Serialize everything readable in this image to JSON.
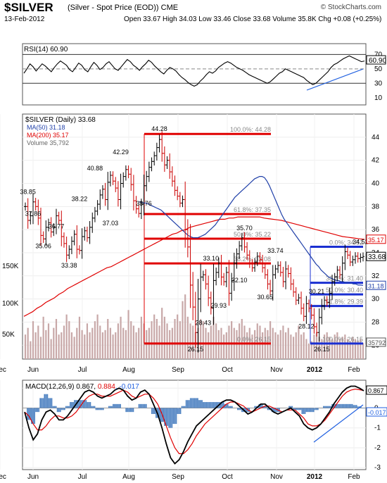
{
  "header": {
    "ticker": "$SILVER",
    "description": "(Silver - Spot Price (EOD))",
    "exchange": "CME",
    "date": "13-Feb-2012",
    "ohlc": "Open 33.67  High 34.03  Low 33.46  Close 33.68  Volume 35.8K  Chg +0.08 (+0.25%)",
    "ohlc_change_color": "#0000cc",
    "logo": "© StockCharts.com"
  },
  "colors": {
    "price_up": "#000000",
    "price_down": "#cc0000",
    "ma50": "#1f3fa8",
    "ma200": "#e00000",
    "fib_down": "#e00000",
    "fib_up": "#1a2fd1",
    "volume": "#c8a8a8",
    "trend": "#2060e0",
    "macd_hist": "#4a7fc0"
  },
  "chart_data": [
    {
      "type": "line",
      "panel": "rsi",
      "legend": "RSI(14) 60.90",
      "yticks": [
        10,
        30,
        50,
        70
      ],
      "guides": [
        30,
        70
      ],
      "last_value": "60.90",
      "ylim": [
        0,
        85
      ],
      "series": [
        {
          "name": "RSI(14)",
          "values": [
            44,
            50,
            57,
            53,
            47,
            52,
            57,
            54,
            50,
            46,
            52,
            57,
            61,
            58,
            55,
            49,
            46,
            52,
            58,
            55,
            49,
            46,
            53,
            59,
            55,
            49,
            52,
            57,
            60,
            55,
            50,
            48,
            53,
            58,
            63,
            60,
            55,
            52,
            48,
            53,
            57,
            62,
            59,
            54,
            50,
            46,
            43,
            48,
            52,
            50,
            47,
            42,
            38,
            35,
            31,
            28,
            26,
            28,
            33,
            37,
            42,
            46,
            44,
            47,
            52,
            55,
            58,
            60,
            58,
            55,
            52,
            50,
            48,
            45,
            42,
            40,
            38,
            36,
            34,
            32,
            30,
            32,
            36,
            40,
            44,
            46,
            50,
            48,
            46,
            44,
            42,
            40,
            38,
            34,
            31,
            28,
            30,
            34,
            38,
            42,
            46,
            52,
            56,
            58,
            61,
            64,
            66,
            68,
            66,
            64,
            62,
            60,
            61
          ]
        }
      ]
    },
    {
      "type": "candlestick",
      "panel": "price",
      "legend": "$SILVER (Daily) 33.68",
      "ylim": [
        24.8,
        46
      ],
      "yticks": [
        26,
        28,
        30,
        32,
        34,
        36,
        38,
        40,
        42,
        44
      ],
      "volume_ticks": [
        "50K",
        "100K",
        "150K"
      ],
      "xlabels": [
        "Jun",
        "Jul",
        "Aug",
        "Sep",
        "Oct",
        "Nov",
        "Dec",
        "2012",
        "Feb"
      ],
      "close": [
        38.0,
        36.8,
        37.2,
        38.4,
        38.0,
        37.0,
        35.5,
        35.2,
        36.2,
        36.6,
        35.8,
        36.2,
        37.2,
        36.8,
        35.4,
        34.8,
        33.8,
        34.3,
        35.0,
        35.6,
        34.3,
        34.2,
        35.4,
        35.9,
        35.3,
        36.2,
        37.0,
        37.6,
        38.2,
        39.0,
        39.5,
        38.6,
        40.1,
        40.7,
        40.2,
        39.6,
        38.6,
        40.0,
        40.6,
        41.2,
        40.8,
        39.9,
        38.5,
        37.8,
        37.4,
        38.2,
        39.8,
        40.6,
        41.4,
        41.9,
        42.4,
        43.1,
        43.8,
        42.6,
        41.6,
        42.0,
        41.0,
        40.2,
        39.4,
        38.9,
        38.3,
        38.6,
        36.0,
        34.5,
        31.2,
        29.3,
        27.1,
        30.0,
        31.9,
        32.1,
        31.3,
        30.1,
        29.2,
        31.6,
        32.3,
        33.1,
        31.9,
        31.5,
        32.3,
        30.5,
        31.6,
        33.1,
        33.9,
        34.6,
        35.3,
        34.5,
        33.8,
        33.1,
        32.7,
        33.2,
        33.7,
        33.4,
        32.7,
        32.1,
        31.3,
        30.7,
        32.1,
        32.6,
        32.9,
        32.3,
        31.5,
        32.6,
        32.2,
        31.3,
        30.6,
        29.9,
        30.1,
        29.2,
        28.5,
        29.6,
        29.2,
        28.6,
        27.6,
        27.1,
        28.4,
        29.4,
        29.9,
        29.7,
        30.5,
        31.5,
        31.9,
        32.5,
        32.1,
        33.1,
        34.1,
        33.8,
        33.2,
        33.4,
        33.7,
        33.5,
        33.6,
        33.68
      ],
      "ma50": [
        38.4,
        38.4,
        38.3,
        38.3,
        38.2,
        38.1,
        38.0,
        37.9,
        37.8,
        37.7,
        37.5,
        37.3,
        37.1,
        36.9,
        36.7,
        36.5,
        36.3,
        36.1,
        35.9,
        35.7,
        35.5,
        35.4,
        35.3,
        35.3,
        35.3,
        35.4,
        35.5,
        35.6,
        35.8,
        36.0,
        36.2,
        36.4,
        36.7,
        37.0,
        37.3,
        37.6,
        37.9,
        38.2,
        38.5,
        38.8,
        39.0,
        39.2,
        39.4,
        39.6,
        39.8,
        40.0,
        40.2,
        40.4,
        40.5,
        40.6,
        40.6,
        40.5,
        40.2,
        39.8,
        39.3,
        38.8,
        38.3,
        37.8,
        37.3,
        36.9,
        36.6,
        36.3,
        36.0,
        35.7,
        35.4,
        35.1,
        34.8,
        34.5,
        34.2,
        33.9,
        33.6,
        33.3,
        33.0,
        32.8,
        32.5,
        32.3,
        32.1,
        31.9,
        31.8,
        31.7,
        31.6,
        31.6,
        31.5,
        31.5,
        31.4,
        31.4,
        31.4,
        31.3,
        31.3,
        31.2,
        31.2,
        31.18
      ],
      "ma50_offset": 44,
      "ma200": [
        28.5,
        28.7,
        28.9,
        29.2,
        29.4,
        29.7,
        29.9,
        30.1,
        30.4,
        30.6,
        30.9,
        31.1,
        31.3,
        31.5,
        31.7,
        31.9,
        32.1,
        32.3,
        32.5,
        32.7,
        32.8,
        33.0,
        33.2,
        33.4,
        33.6,
        33.8,
        34.0,
        34.2,
        34.4,
        34.6,
        34.8,
        35.0,
        35.2,
        35.4,
        35.6,
        35.7,
        35.9,
        36.0,
        36.2,
        36.3,
        36.4,
        36.5,
        36.6,
        36.7,
        36.8,
        36.9,
        36.9,
        37.0,
        37.0,
        37.1,
        37.1,
        37.1,
        37.1,
        37.1,
        37.1,
        37.0,
        36.95,
        36.9,
        36.85,
        36.8,
        36.7,
        36.6,
        36.5,
        36.4,
        36.3,
        36.2,
        36.1,
        36.0,
        35.9,
        35.8,
        35.7,
        35.6,
        35.5,
        35.4,
        35.35,
        35.3,
        35.25,
        35.2,
        35.17
      ],
      "volume": [
        55,
        70,
        40,
        85,
        60,
        75,
        50,
        95,
        65,
        80,
        45,
        70,
        90,
        55,
        60,
        75,
        100,
        85,
        60,
        50,
        70,
        95,
        65,
        55,
        80,
        60,
        70,
        85,
        100,
        75,
        60,
        65,
        90,
        70,
        55,
        60,
        80,
        95,
        70,
        65,
        110,
        85,
        75,
        60,
        70,
        95,
        80,
        65,
        70,
        85,
        100,
        90,
        75,
        115,
        95,
        80,
        65,
        70,
        90,
        100,
        85,
        130,
        145,
        95,
        80,
        75,
        60,
        70,
        90,
        85,
        70,
        60,
        75,
        95,
        80,
        65,
        70,
        55,
        60,
        75,
        85,
        70,
        65,
        80,
        90,
        75,
        60,
        70,
        55,
        65,
        80,
        75,
        60,
        70,
        65,
        85,
        70,
        60,
        55,
        65,
        75,
        60,
        70,
        55,
        50,
        60,
        75,
        55,
        60,
        45,
        35,
        40,
        55,
        60,
        50,
        45,
        55,
        60,
        50,
        45,
        55,
        60,
        45,
        50,
        55,
        45,
        40,
        50,
        45,
        40,
        45,
        36
      ],
      "point_labels": [
        {
          "i": 1,
          "value": "38.85"
        },
        {
          "i": 3,
          "value": "37.86"
        },
        {
          "i": 7,
          "value": "35.06"
        },
        {
          "i": 12,
          "value": "36.77"
        },
        {
          "i": 17,
          "value": "33.38"
        },
        {
          "i": 21,
          "value": "38.22"
        },
        {
          "i": 27,
          "value": "40.88"
        },
        {
          "i": 33,
          "value": "37.03"
        },
        {
          "i": 37,
          "value": "42.29"
        },
        {
          "i": 46,
          "value": "38.76"
        },
        {
          "i": 52,
          "value": "44.28"
        },
        {
          "i": 66,
          "value": "26.15"
        },
        {
          "i": 69,
          "value": "28.43"
        },
        {
          "i": 72,
          "value": "33.10"
        },
        {
          "i": 75,
          "value": "29.93"
        },
        {
          "i": 83,
          "value": "32.10"
        },
        {
          "i": 85,
          "value": "35.70"
        },
        {
          "i": 93,
          "value": "30.65"
        },
        {
          "i": 97,
          "value": "33.74"
        },
        {
          "i": 109,
          "value": "28.12"
        },
        {
          "i": 113,
          "value": "30.21"
        },
        {
          "i": 115,
          "value": "26.15"
        },
        {
          "i": 130,
          "value": "34.52"
        }
      ],
      "fib_down": [
        {
          "level": 44.28,
          "label": "100.0%: 44.28"
        },
        {
          "level": 37.35,
          "label": "61.8%: 37.35"
        },
        {
          "level": 35.22,
          "label": "50.0%: 35.22"
        },
        {
          "level": 33.08,
          "label": "38.2%: 33.08"
        },
        {
          "level": 26.15,
          "label": "0.0%: 26.15"
        }
      ],
      "fib_up": [
        {
          "level": 34.52,
          "label": "0.0%: 34.52"
        },
        {
          "level": 31.4,
          "label": "38.2%: 31.40"
        },
        {
          "level": 30.4,
          "label": "50.0%: 30.40"
        },
        {
          "level": 29.39,
          "label": "61.8%: 29.39"
        },
        {
          "level": 26.15,
          "label": "100.0%: 26.15"
        }
      ],
      "tags": [
        {
          "value": 35.17,
          "label": "35.17"
        },
        {
          "value": 33.68,
          "label": "33.68"
        },
        {
          "value": 31.18,
          "label": "31.18"
        },
        {
          "value": 26.15,
          "label": "35792"
        }
      ]
    },
    {
      "type": "line",
      "panel": "macd",
      "legend": "MACD(12,26,9) 0.867, 0.884, -0.017",
      "ylim": [
        -3.1,
        1.4
      ],
      "yticks": [
        -3,
        -2,
        -1,
        0,
        1
      ],
      "xlabels": [
        "Jun",
        "Jul",
        "Aug",
        "Sep",
        "Oct",
        "Nov",
        "Dec",
        "2012",
        "Feb"
      ],
      "series": [
        {
          "name": "MACD",
          "values": [
            -0.2,
            -1.0,
            -1.6,
            -1.3,
            -0.6,
            -0.2,
            -0.1,
            -0.3,
            -0.6,
            -0.6,
            -0.4,
            -0.1,
            0.2,
            0.5,
            0.8,
            0.9,
            0.8,
            0.6,
            0.5,
            0.6,
            0.7,
            0.9,
            1.0,
            0.9,
            0.6,
            0.4,
            0.5,
            0.8,
            0.9,
            0.7,
            0.2,
            -0.3,
            -1.0,
            -1.8,
            -2.5,
            -2.8,
            -2.6,
            -2.2,
            -1.7,
            -1.3,
            -0.9,
            -0.7,
            -0.5,
            -0.3,
            -0.1,
            0.1,
            0.3,
            0.4,
            0.4,
            0.3,
            0.1,
            -0.1,
            -0.3,
            -0.2,
            0.0,
            0.2,
            0.2,
            0.0,
            -0.2,
            -0.3,
            -0.2,
            -0.1,
            0.0,
            -0.2,
            -0.4,
            -0.8,
            -1.0,
            -1.1,
            -1.0,
            -0.8,
            -0.5,
            -0.2,
            0.2,
            0.5,
            0.8,
            1.0,
            1.1,
            1.1,
            1.0,
            0.87
          ]
        },
        {
          "name": "Signal",
          "values": [
            -0.2,
            -0.4,
            -0.8,
            -1.1,
            -1.1,
            -0.9,
            -0.6,
            -0.4,
            -0.4,
            -0.5,
            -0.5,
            -0.4,
            -0.2,
            0.1,
            0.4,
            0.6,
            0.7,
            0.7,
            0.6,
            0.6,
            0.6,
            0.7,
            0.8,
            0.9,
            0.8,
            0.6,
            0.5,
            0.6,
            0.7,
            0.7,
            0.5,
            0.2,
            -0.3,
            -0.9,
            -1.5,
            -2.0,
            -2.3,
            -2.3,
            -2.1,
            -1.8,
            -1.4,
            -1.1,
            -0.8,
            -0.6,
            -0.4,
            -0.2,
            0.0,
            0.2,
            0.3,
            0.3,
            0.2,
            0.1,
            -0.1,
            -0.2,
            -0.1,
            0.0,
            0.1,
            0.1,
            0.0,
            -0.1,
            -0.2,
            -0.1,
            -0.1,
            -0.1,
            -0.3,
            -0.5,
            -0.8,
            -0.9,
            -0.9,
            -0.8,
            -0.6,
            -0.3,
            0.0,
            0.3,
            0.6,
            0.8,
            0.9,
            0.95,
            0.92,
            0.884
          ]
        },
        {
          "name": "Histogram",
          "values": [
            0,
            -0.6,
            -0.8,
            -0.2,
            0.5,
            0.7,
            0.5,
            0.1,
            -0.2,
            -0.1,
            0.1,
            0.3,
            0.4,
            0.4,
            0.4,
            0.3,
            0.1,
            -0.1,
            -0.1,
            0,
            0.1,
            0.2,
            0.2,
            0,
            -0.2,
            -0.2,
            0,
            0.2,
            0.2,
            0,
            -0.3,
            -0.5,
            -0.7,
            -0.9,
            -1.0,
            -0.8,
            -0.3,
            0.1,
            0.4,
            0.5,
            0.5,
            0.4,
            0.3,
            0.3,
            0.3,
            0.3,
            0.3,
            0.2,
            0.1,
            0,
            -0.1,
            -0.2,
            -0.2,
            0,
            0.1,
            0.2,
            0.1,
            -0.1,
            -0.2,
            -0.2,
            0,
            0,
            0.1,
            -0.1,
            -0.1,
            -0.3,
            -0.2,
            -0.2,
            -0.1,
            0,
            0.1,
            0.1,
            0.2,
            0.2,
            0.2,
            0.2,
            0.2,
            0.15,
            0.08,
            -0.017
          ]
        }
      ],
      "tags": [
        {
          "value": 0.867,
          "label": "0.867"
        },
        {
          "value": -0.017,
          "label": "-0.017"
        }
      ]
    }
  ]
}
